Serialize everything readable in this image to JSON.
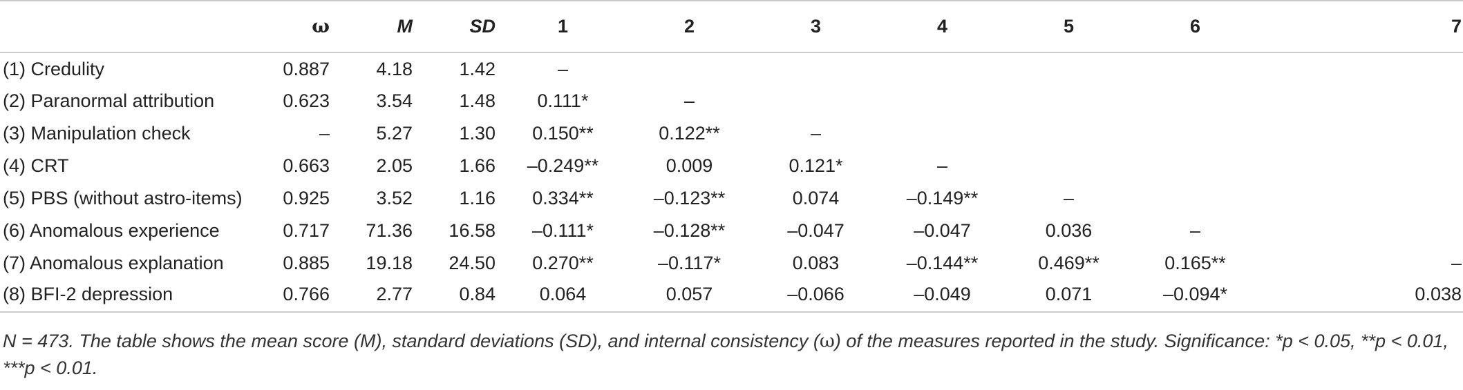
{
  "table": {
    "headers": [
      "",
      "ω",
      "M",
      "SD",
      "1",
      "2",
      "3",
      "4",
      "5",
      "6",
      "7"
    ],
    "rows": [
      {
        "label": "(1) Credulity",
        "cells": [
          "0.887",
          "4.18",
          "1.42",
          "–",
          "",
          "",
          "",
          "",
          "",
          ""
        ]
      },
      {
        "label": "(2) Paranormal attribution",
        "cells": [
          "0.623",
          "3.54",
          "1.48",
          "0.111*",
          "–",
          "",
          "",
          "",
          "",
          ""
        ]
      },
      {
        "label": "(3) Manipulation check",
        "cells": [
          "–",
          "5.27",
          "1.30",
          "0.150**",
          "0.122**",
          "–",
          "",
          "",
          "",
          ""
        ]
      },
      {
        "label": "(4) CRT",
        "cells": [
          "0.663",
          "2.05",
          "1.66",
          "–0.249**",
          "0.009",
          "0.121*",
          "–",
          "",
          "",
          ""
        ]
      },
      {
        "label": "(5) PBS (without astro-items)",
        "cells": [
          "0.925",
          "3.52",
          "1.16",
          "0.334**",
          "–0.123**",
          "0.074",
          "–0.149**",
          "–",
          "",
          ""
        ]
      },
      {
        "label": "(6) Anomalous experience",
        "cells": [
          "0.717",
          "71.36",
          "16.58",
          "–0.111*",
          "–0.128**",
          "–0.047",
          "–0.047",
          "0.036",
          "–",
          ""
        ]
      },
      {
        "label": "(7) Anomalous explanation",
        "cells": [
          "0.885",
          "19.18",
          "24.50",
          "0.270**",
          "–0.117*",
          "0.083",
          "–0.144**",
          "0.469**",
          "0.165**",
          "–"
        ]
      },
      {
        "label": "(8) BFI-2 depression",
        "cells": [
          "0.766",
          "2.77",
          "0.84",
          "0.064",
          "0.057",
          "–0.066",
          "–0.049",
          "0.071",
          "–0.094*",
          "0.038"
        ]
      }
    ]
  },
  "note": {
    "part1": "N = 473. The table shows the mean score (M), standard deviations (SD), and internal consistency (",
    "omega": "ω",
    "part2": ") of the measures reported in the study. Significance: *p < 0.05, **p < 0.01, ***p < 0.01."
  }
}
